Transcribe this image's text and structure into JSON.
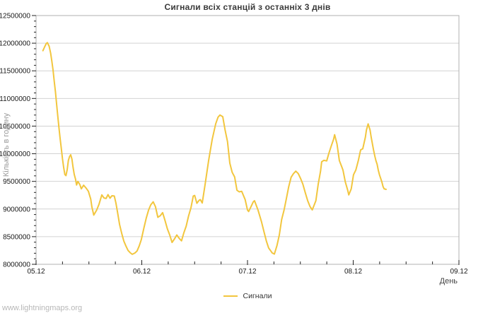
{
  "watermark": {
    "text": "www.lightningmaps.org",
    "color": "#b8b8b8"
  },
  "colors": {
    "line": "#f2c63e",
    "grid": "#d2d2d2",
    "border": "#b0b0b0",
    "tick": "#222222",
    "tick_label": "#1a1a1a",
    "title": "#3a3a3a",
    "y_axis_title": "#9a9a9a",
    "x_axis_title": "#444444"
  },
  "chart_data": {
    "type": "line",
    "title": "Сигнали всіх станцій з останніх 3 днів",
    "xlabel": "День",
    "ylabel": "Кількість в годину",
    "grid": "horizontal-major-only",
    "legend_position": "bottom-center",
    "xlim_days": [
      0,
      4
    ],
    "ylim": [
      8000000,
      12500000
    ],
    "y_major_step": 500000,
    "y_minor_step": 100000,
    "x_minor_step_days": 0.25,
    "x_tick_labels": [
      "05.12",
      "06.12",
      "07.12",
      "08.12",
      "09.12"
    ],
    "y_tick_labels": [
      "8000000",
      "8500000",
      "9000000",
      "9500000",
      "10000000",
      "10500000",
      "11000000",
      "11500000",
      "12000000",
      "12500000"
    ],
    "series": [
      {
        "name": "Сигнали",
        "color": "#f2c63e",
        "x_unit": "days_since_05.12",
        "y_unit": "signals_per_hour",
        "points": [
          [
            0.065,
            11865000
          ],
          [
            0.08,
            11930000
          ],
          [
            0.097,
            11995000
          ],
          [
            0.107,
            12010000
          ],
          [
            0.117,
            11970000
          ],
          [
            0.124,
            11945000
          ],
          [
            0.138,
            11820000
          ],
          [
            0.149,
            11675000
          ],
          [
            0.161,
            11505000
          ],
          [
            0.172,
            11310000
          ],
          [
            0.183,
            11120000
          ],
          [
            0.194,
            10905000
          ],
          [
            0.205,
            10695000
          ],
          [
            0.216,
            10480000
          ],
          [
            0.227,
            10290000
          ],
          [
            0.239,
            10095000
          ],
          [
            0.25,
            9905000
          ],
          [
            0.261,
            9755000
          ],
          [
            0.272,
            9625000
          ],
          [
            0.283,
            9605000
          ],
          [
            0.294,
            9710000
          ],
          [
            0.306,
            9880000
          ],
          [
            0.317,
            9950000
          ],
          [
            0.328,
            9980000
          ],
          [
            0.339,
            9905000
          ],
          [
            0.35,
            9755000
          ],
          [
            0.361,
            9625000
          ],
          [
            0.373,
            9540000
          ],
          [
            0.383,
            9435000
          ],
          [
            0.395,
            9500000
          ],
          [
            0.415,
            9440000
          ],
          [
            0.428,
            9365000
          ],
          [
            0.45,
            9430000
          ],
          [
            0.473,
            9380000
          ],
          [
            0.495,
            9320000
          ],
          [
            0.517,
            9180000
          ],
          [
            0.528,
            9040000
          ],
          [
            0.546,
            8890000
          ],
          [
            0.573,
            8980000
          ],
          [
            0.595,
            9085000
          ],
          [
            0.622,
            9255000
          ],
          [
            0.642,
            9200000
          ],
          [
            0.662,
            9190000
          ],
          [
            0.68,
            9260000
          ],
          [
            0.7,
            9195000
          ],
          [
            0.718,
            9240000
          ],
          [
            0.74,
            9235000
          ],
          [
            0.755,
            9110000
          ],
          [
            0.77,
            8950000
          ],
          [
            0.79,
            8720000
          ],
          [
            0.81,
            8560000
          ],
          [
            0.83,
            8420000
          ],
          [
            0.85,
            8330000
          ],
          [
            0.87,
            8250000
          ],
          [
            0.89,
            8210000
          ],
          [
            0.91,
            8180000
          ],
          [
            0.935,
            8205000
          ],
          [
            0.955,
            8240000
          ],
          [
            0.975,
            8330000
          ],
          [
            0.995,
            8445000
          ],
          [
            1.019,
            8645000
          ],
          [
            1.042,
            8835000
          ],
          [
            1.064,
            8980000
          ],
          [
            1.085,
            9075000
          ],
          [
            1.108,
            9130000
          ],
          [
            1.13,
            9040000
          ],
          [
            1.152,
            8850000
          ],
          [
            1.175,
            8880000
          ],
          [
            1.197,
            8935000
          ],
          [
            1.22,
            8790000
          ],
          [
            1.242,
            8640000
          ],
          [
            1.264,
            8530000
          ],
          [
            1.286,
            8395000
          ],
          [
            1.31,
            8460000
          ],
          [
            1.331,
            8530000
          ],
          [
            1.353,
            8470000
          ],
          [
            1.376,
            8425000
          ],
          [
            1.398,
            8570000
          ],
          [
            1.42,
            8690000
          ],
          [
            1.442,
            8870000
          ],
          [
            1.465,
            9020000
          ],
          [
            1.487,
            9235000
          ],
          [
            1.5,
            9245000
          ],
          [
            1.521,
            9105000
          ],
          [
            1.543,
            9160000
          ],
          [
            1.554,
            9170000
          ],
          [
            1.572,
            9110000
          ],
          [
            1.599,
            9450000
          ],
          [
            1.632,
            9875000
          ],
          [
            1.666,
            10260000
          ],
          [
            1.699,
            10540000
          ],
          [
            1.721,
            10660000
          ],
          [
            1.739,
            10700000
          ],
          [
            1.766,
            10670000
          ],
          [
            1.788,
            10430000
          ],
          [
            1.811,
            10220000
          ],
          [
            1.833,
            9830000
          ],
          [
            1.855,
            9665000
          ],
          [
            1.878,
            9580000
          ],
          [
            1.9,
            9340000
          ],
          [
            1.922,
            9310000
          ],
          [
            1.945,
            9320000
          ],
          [
            1.978,
            9170000
          ],
          [
            2.0,
            8980000
          ],
          [
            2.011,
            8955000
          ],
          [
            2.033,
            9040000
          ],
          [
            2.055,
            9130000
          ],
          [
            2.066,
            9150000
          ],
          [
            2.1,
            8980000
          ],
          [
            2.133,
            8765000
          ],
          [
            2.155,
            8595000
          ],
          [
            2.178,
            8425000
          ],
          [
            2.2,
            8295000
          ],
          [
            2.234,
            8205000
          ],
          [
            2.254,
            8185000
          ],
          [
            2.279,
            8340000
          ],
          [
            2.301,
            8530000
          ],
          [
            2.323,
            8810000
          ],
          [
            2.346,
            8980000
          ],
          [
            2.368,
            9190000
          ],
          [
            2.39,
            9405000
          ],
          [
            2.413,
            9575000
          ],
          [
            2.435,
            9640000
          ],
          [
            2.457,
            9685000
          ],
          [
            2.48,
            9640000
          ],
          [
            2.502,
            9555000
          ],
          [
            2.524,
            9450000
          ],
          [
            2.546,
            9300000
          ],
          [
            2.569,
            9150000
          ],
          [
            2.591,
            9045000
          ],
          [
            2.613,
            8985000
          ],
          [
            2.647,
            9150000
          ],
          [
            2.669,
            9450000
          ],
          [
            2.691,
            9685000
          ],
          [
            2.702,
            9855000
          ],
          [
            2.722,
            9880000
          ],
          [
            2.749,
            9870000
          ],
          [
            2.769,
            10005000
          ],
          [
            2.791,
            10135000
          ],
          [
            2.814,
            10260000
          ],
          [
            2.824,
            10345000
          ],
          [
            2.847,
            10175000
          ],
          [
            2.869,
            9875000
          ],
          [
            2.89,
            9770000
          ],
          [
            2.903,
            9705000
          ],
          [
            2.925,
            9490000
          ],
          [
            2.948,
            9340000
          ],
          [
            2.958,
            9255000
          ],
          [
            2.981,
            9365000
          ],
          [
            3.003,
            9620000
          ],
          [
            3.025,
            9705000
          ],
          [
            3.048,
            9875000
          ],
          [
            3.07,
            10070000
          ],
          [
            3.09,
            10090000
          ],
          [
            3.115,
            10300000
          ],
          [
            3.125,
            10430000
          ],
          [
            3.141,
            10540000
          ],
          [
            3.159,
            10430000
          ],
          [
            3.17,
            10300000
          ],
          [
            3.192,
            10070000
          ],
          [
            3.204,
            9960000
          ],
          [
            3.215,
            9875000
          ],
          [
            3.226,
            9810000
          ],
          [
            3.237,
            9705000
          ],
          [
            3.248,
            9620000
          ],
          [
            3.271,
            9490000
          ],
          [
            3.282,
            9405000
          ],
          [
            3.292,
            9365000
          ],
          [
            3.311,
            9355000
          ]
        ]
      }
    ]
  }
}
